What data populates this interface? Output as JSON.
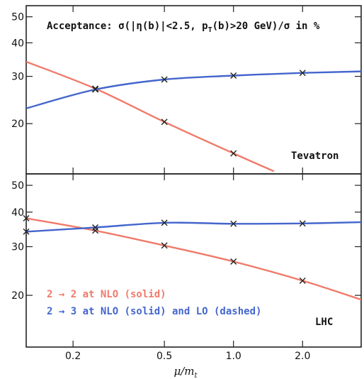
{
  "chart_data": [
    {
      "type": "line",
      "panel": "Tevatron",
      "annotation": "Acceptance: σ(|η(b)|<2.5, p_T(b)>20 GeV)/σ in %",
      "title_parts": [
        "Acceptance: σ(|η(b)|<2.5, p",
        "T",
        "(b)>20 GeV)/σ in %"
      ],
      "label": "Tevatron",
      "xscale": "log",
      "yscale": "log",
      "xlim": [
        0.125,
        3.6
      ],
      "ylim": [
        13,
        55
      ],
      "yticks": [
        "20",
        "30",
        "40",
        "50"
      ],
      "ytick_values": [
        20,
        30,
        40,
        50
      ],
      "series": [
        {
          "color": "#f07a6a",
          "x": [
            0.125,
            0.25,
            0.5,
            1.0,
            1.5
          ],
          "y": [
            34.0,
            27.0,
            20.3,
            15.5,
            13.3
          ],
          "markers": [
            0.25,
            0.5,
            1.0
          ]
        },
        {
          "color": "#4466cc",
          "x": [
            0.125,
            0.25,
            0.5,
            1.0,
            2.0,
            3.6
          ],
          "y": [
            22.8,
            26.8,
            29.2,
            30.2,
            30.9,
            31.3
          ],
          "markers": [
            0.25,
            0.5,
            1.0,
            2.0
          ]
        }
      ]
    },
    {
      "type": "line",
      "panel": "LHC",
      "label": "LHC",
      "xscale": "log",
      "yscale": "log",
      "xlim": [
        0.125,
        3.6
      ],
      "ylim": [
        13,
        55
      ],
      "yticks": [
        "20",
        "30",
        "40",
        "50"
      ],
      "ytick_values": [
        20,
        30,
        40,
        50
      ],
      "xticks": [
        "0.2",
        "0.5",
        "1.0",
        "2.0"
      ],
      "xtick_values": [
        0.2,
        0.5,
        1.0,
        2.0
      ],
      "xlabel_parts": [
        "μ/m",
        "t"
      ],
      "legend": [
        "2 → 2 at NLO (solid)",
        "2 → 3 at NLO (solid) and LO (dashed)"
      ],
      "series": [
        {
          "color": "#f07a6a",
          "x": [
            0.125,
            0.25,
            0.5,
            1.0,
            2.0,
            3.6
          ],
          "y": [
            38.0,
            34.3,
            30.3,
            26.5,
            22.6,
            19.3
          ],
          "markers": [
            0.125,
            0.25,
            0.5,
            1.0,
            2.0
          ]
        },
        {
          "color": "#4466cc",
          "x": [
            0.125,
            0.25,
            0.5,
            1.0,
            2.0,
            3.6
          ],
          "y": [
            34.0,
            35.2,
            36.6,
            36.3,
            36.4,
            36.8
          ],
          "markers": [
            0.125,
            0.25,
            0.5,
            1.0,
            2.0
          ]
        }
      ]
    }
  ]
}
